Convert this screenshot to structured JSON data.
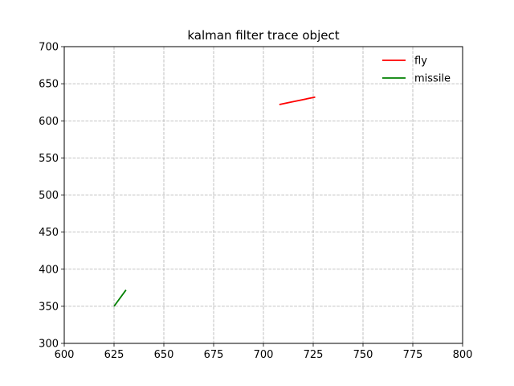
{
  "chart_data": {
    "type": "line",
    "title": "kalman filter trace object",
    "xlabel": "",
    "ylabel": "",
    "xlim": [
      600,
      800
    ],
    "ylim": [
      300,
      700
    ],
    "xticks": [
      600,
      625,
      650,
      675,
      700,
      725,
      750,
      775,
      800
    ],
    "yticks": [
      300,
      350,
      400,
      450,
      500,
      550,
      600,
      650,
      700
    ],
    "grid": true,
    "legend_position": "top-right",
    "series": [
      {
        "name": "fly",
        "color": "#ff0000",
        "x": [
          708,
          726
        ],
        "y": [
          622,
          632
        ]
      },
      {
        "name": "missile",
        "color": "#008000",
        "x": [
          625,
          631
        ],
        "y": [
          350,
          372
        ]
      }
    ]
  }
}
